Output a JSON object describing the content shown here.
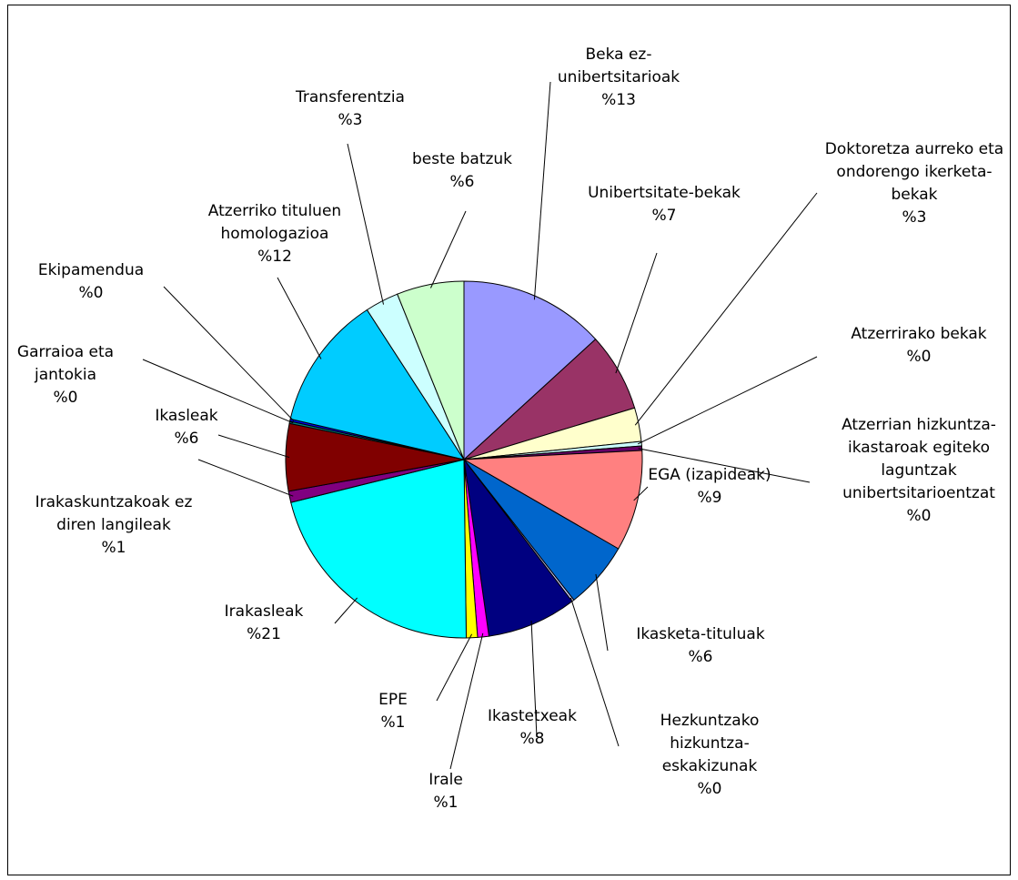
{
  "chart_data": {
    "type": "pie",
    "categories": [
      "Beka ez-unibertsitarioak",
      "Unibertsitate-bekak",
      "Doktoretza aurreko eta ondorengo ikerketa-bekak",
      "Atzerrirako bekak",
      "Atzerrian hizkuntza-ikastaroak egiteko laguntzak unibertsitarioentzat",
      "EGA (izapideak)",
      "Ikasketa-tituluak",
      "Hezkuntzako hizkuntza-eskakizunak",
      "Ikastetxeak",
      "Irale",
      "EPE",
      "Irakasleak",
      "Irakaskuntzakoak ez diren langileak",
      "Ikasleak",
      "Garraioa eta jantokia",
      "Ekipamendua",
      "Atzerriko tituluen homologazioa",
      "Transferentzia",
      "beste batzuk"
    ],
    "values": [
      13,
      7,
      3,
      0.4,
      0.4,
      9,
      6,
      0.2,
      8,
      1,
      1,
      21,
      1,
      6,
      0.2,
      0.2,
      12,
      3,
      6
    ],
    "value_labels": [
      "%13",
      "%7",
      "%3",
      "%0",
      "%0",
      "%9",
      "%6",
      "%0",
      "%8",
      "%1",
      "%1",
      "%21",
      "%1",
      "%6",
      "%0",
      "%0",
      "%12",
      "%3",
      "%6"
    ],
    "colors": [
      "#9999ff",
      "#993366",
      "#ffffcc",
      "#ccffff",
      "#660066",
      "#ff8080",
      "#0066cc",
      "#ccccff",
      "#000080",
      "#ff00ff",
      "#ffff00",
      "#00ffff",
      "#800080",
      "#800000",
      "#008080",
      "#0000ff",
      "#00ccff",
      "#ccffff",
      "#ccffcc"
    ]
  }
}
